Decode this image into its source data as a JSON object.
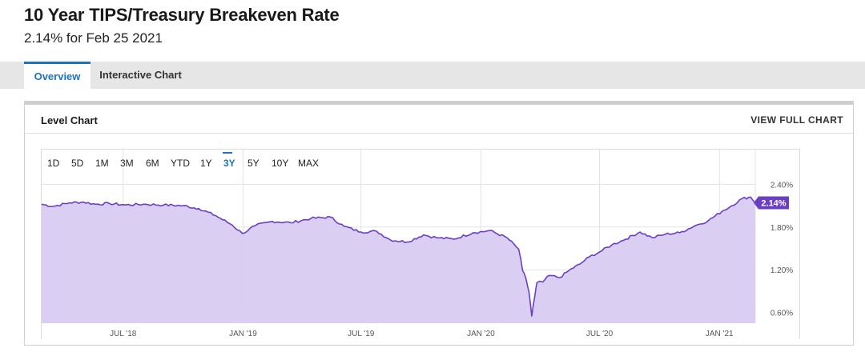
{
  "header": {
    "title": "10 Year TIPS/Treasury Breakeven Rate",
    "subtitle": "2.14% for Feb 25 2021"
  },
  "tabs": [
    {
      "label": "Overview",
      "active": true
    },
    {
      "label": "Interactive Chart",
      "active": false
    }
  ],
  "panel": {
    "title": "Level Chart",
    "view_full_label": "VIEW FULL CHART"
  },
  "ranges": [
    "1D",
    "5D",
    "1M",
    "3M",
    "6M",
    "YTD",
    "1Y",
    "3Y",
    "5Y",
    "10Y",
    "MAX"
  ],
  "active_range": "3Y",
  "colors": {
    "accent": "#1a73c4",
    "line": "#6a3fc4",
    "fill": "#d8ccf2",
    "badge": "#6a3fc4"
  },
  "chart_data": {
    "type": "area",
    "title": "10 Year TIPS/Treasury Breakeven Rate",
    "current_label": "2.14%",
    "y_ticks": [
      "2.40%",
      "1.80%",
      "1.20%",
      "0.60%"
    ],
    "x_ticks": [
      "JUL '18",
      "JAN '19",
      "JUL '19",
      "JAN '20",
      "JUL '20",
      "JAN '21"
    ],
    "ylim": [
      0.45,
      2.55
    ],
    "xlim": [
      "2018-02-26",
      "2021-02-25"
    ],
    "grid": true,
    "x": [
      "2018-02-26",
      "2018-03-15",
      "2018-04-10",
      "2018-05-01",
      "2018-05-20",
      "2018-06-10",
      "2018-07-05",
      "2018-08-01",
      "2018-09-01",
      "2018-10-01",
      "2018-10-25",
      "2018-11-20",
      "2018-12-15",
      "2018-12-31",
      "2019-01-20",
      "2019-02-15",
      "2019-03-15",
      "2019-04-15",
      "2019-05-15",
      "2019-06-05",
      "2019-07-01",
      "2019-07-25",
      "2019-08-15",
      "2019-09-10",
      "2019-10-05",
      "2019-10-25",
      "2019-11-20",
      "2019-12-20",
      "2020-01-15",
      "2020-02-10",
      "2020-02-28",
      "2020-03-05",
      "2020-03-10",
      "2020-03-15",
      "2020-03-19",
      "2020-03-24",
      "2020-03-27",
      "2020-04-05",
      "2020-04-15",
      "2020-05-01",
      "2020-05-15",
      "2020-06-01",
      "2020-06-15",
      "2020-07-01",
      "2020-07-20",
      "2020-08-10",
      "2020-09-01",
      "2020-09-20",
      "2020-10-10",
      "2020-11-01",
      "2020-11-25",
      "2020-12-15",
      "2021-01-05",
      "2021-01-20",
      "2021-02-05",
      "2021-02-18",
      "2021-02-25"
    ],
    "series": [
      {
        "values": [
          2.12,
          2.09,
          2.14,
          2.15,
          2.12,
          2.13,
          2.11,
          2.12,
          2.11,
          2.1,
          2.06,
          1.96,
          1.83,
          1.71,
          1.82,
          1.88,
          1.86,
          1.92,
          1.94,
          1.81,
          1.73,
          1.74,
          1.62,
          1.59,
          1.69,
          1.65,
          1.63,
          1.72,
          1.75,
          1.65,
          1.49,
          1.19,
          1.08,
          0.88,
          0.55,
          0.85,
          1.02,
          1.03,
          1.12,
          1.09,
          1.19,
          1.28,
          1.38,
          1.45,
          1.55,
          1.63,
          1.73,
          1.65,
          1.7,
          1.72,
          1.82,
          1.89,
          2.02,
          2.1,
          2.2,
          2.22,
          2.14
        ]
      }
    ]
  }
}
